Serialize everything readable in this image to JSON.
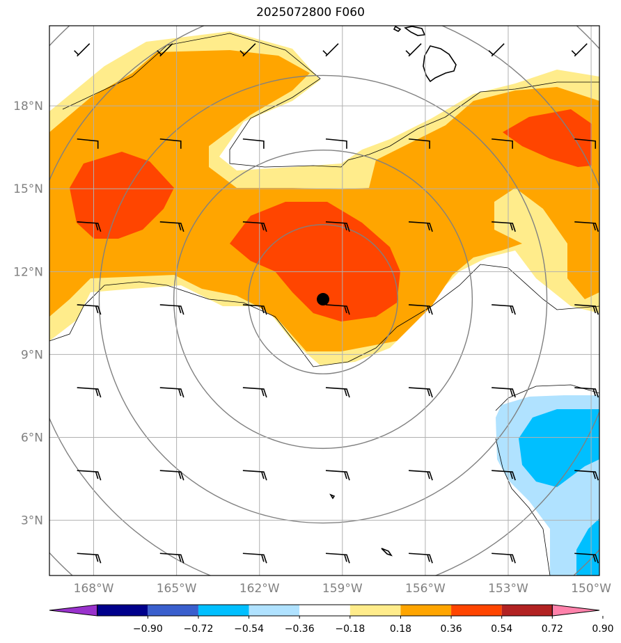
{
  "map": {
    "title": "2025072800 F060",
    "lon_ticks": [
      "168°W",
      "165°W",
      "162°W",
      "159°W",
      "156°W",
      "153°W",
      "150°W"
    ],
    "lat_ticks": [
      "18°N",
      "15°N",
      "12°N",
      "9°N",
      "6°N",
      "3°N"
    ],
    "lon_range_deg": [
      -169.6,
      -149.7
    ],
    "lat_range_deg": [
      1.0,
      20.9
    ],
    "grid": true,
    "storm_center": {
      "lon": -159.7,
      "lat": 11.0
    },
    "range_rings": 5,
    "barbs_shown": true
  },
  "colorbar": {
    "extend": "both",
    "bounds": [
      "-0.90",
      "-0.72",
      "-0.54",
      "-0.36",
      "-0.18",
      "0.18",
      "0.36",
      "0.54",
      "0.72",
      "0.90"
    ],
    "colors": [
      "#9932cc",
      "#00008b",
      "#3a5fcd",
      "#00bfff",
      "#b0e2ff",
      "#ffffff",
      "#ffec8b",
      "#ffa500",
      "#ff4500",
      "#b22222",
      "#ff82ab"
    ]
  }
}
